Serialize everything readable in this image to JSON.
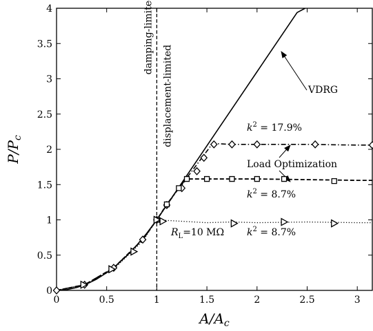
{
  "chart_data": {
    "type": "line",
    "title": "",
    "xlabel": "A/A_c",
    "ylabel": "P/P_c",
    "xlim": [
      0,
      3.15
    ],
    "ylim": [
      0,
      4
    ],
    "xticks": [
      "0",
      "0.5",
      "1",
      "1.5",
      "2",
      "2.5",
      "3"
    ],
    "yticks": [
      "0",
      "0.5",
      "1",
      "1.5",
      "2",
      "2.5",
      "3",
      "3.5",
      "4"
    ],
    "grid": false,
    "vertical_line": {
      "x": 1,
      "style": "dashed",
      "left_label": "damping-limited",
      "right_label": "displacement-limited"
    },
    "annotations": {
      "vdrg": "VDRG",
      "k2_high": "k² = 17.9%",
      "load_opt": "Load Optimization",
      "k2_mid": "k² = 8.7%",
      "rl": "R_L=10 MΩ",
      "k2_low": "k² = 8.7%"
    },
    "series": [
      {
        "name": "VDRG",
        "style": "solid",
        "x": [
          0,
          0.1,
          0.2,
          0.3,
          0.4,
          0.5,
          0.6,
          0.7,
          0.8,
          0.9,
          1.0,
          1.2,
          1.4,
          1.6,
          1.8,
          2.0,
          2.2,
          2.4,
          2.48
        ],
        "y": [
          0,
          0.01,
          0.04,
          0.09,
          0.16,
          0.25,
          0.36,
          0.49,
          0.64,
          0.81,
          1.0,
          1.42,
          1.84,
          2.26,
          2.68,
          3.1,
          3.52,
          3.94,
          4.0
        ]
      },
      {
        "name": "k² = 17.9%",
        "style": "dashdot",
        "marker": "diamond",
        "x": [
          0,
          0.28,
          0.57,
          0.86,
          1.0,
          1.1,
          1.22,
          1.35,
          1.45,
          1.55,
          1.6,
          1.75,
          2.0,
          2.5,
          3.0,
          3.15
        ],
        "y": [
          0,
          0.08,
          0.32,
          0.72,
          1.0,
          1.21,
          1.45,
          1.69,
          1.88,
          2.07,
          2.08,
          2.07,
          2.07,
          2.07,
          2.06,
          2.06
        ],
        "marker_x": [
          0,
          0.28,
          0.57,
          0.86,
          1.0,
          1.1,
          1.25,
          1.4,
          1.47,
          1.57,
          1.75,
          2.0,
          2.58,
          3.15
        ],
        "marker_y": [
          0,
          0.08,
          0.32,
          0.72,
          1.0,
          1.21,
          1.45,
          1.69,
          1.88,
          2.07,
          2.07,
          2.07,
          2.07,
          2.06
        ]
      },
      {
        "name": "k² = 8.7%",
        "style": "dashed",
        "marker": "square",
        "x": [
          0,
          0.28,
          0.57,
          0.86,
          1.0,
          1.1,
          1.22,
          1.3,
          1.5,
          1.75,
          2.0,
          2.5,
          3.0,
          3.15
        ],
        "y": [
          0,
          0.08,
          0.32,
          0.72,
          1.0,
          1.22,
          1.45,
          1.58,
          1.58,
          1.58,
          1.58,
          1.57,
          1.56,
          1.56
        ],
        "marker_x": [
          1.0,
          1.1,
          1.22,
          1.3,
          1.5,
          1.75,
          2.0,
          2.27,
          2.77
        ],
        "marker_y": [
          1.0,
          1.22,
          1.45,
          1.58,
          1.58,
          1.58,
          1.58,
          1.58,
          1.55
        ]
      },
      {
        "name": "R_L=10 MΩ  k² = 8.7%",
        "style": "dotted",
        "marker": "triangle-right",
        "x": [
          0,
          0.28,
          0.57,
          0.86,
          1.0,
          1.25,
          1.5,
          1.75,
          2.0,
          2.5,
          3.0,
          3.15
        ],
        "y": [
          0,
          0.08,
          0.3,
          0.7,
          1.0,
          0.98,
          0.96,
          0.97,
          0.96,
          0.97,
          0.96,
          0.96
        ],
        "marker_x": [
          0.27,
          0.55,
          0.77,
          1.0,
          1.06,
          1.77,
          2.27,
          2.77
        ],
        "marker_y": [
          0.08,
          0.3,
          0.55,
          1.0,
          0.98,
          0.95,
          0.97,
          0.95
        ]
      }
    ]
  }
}
